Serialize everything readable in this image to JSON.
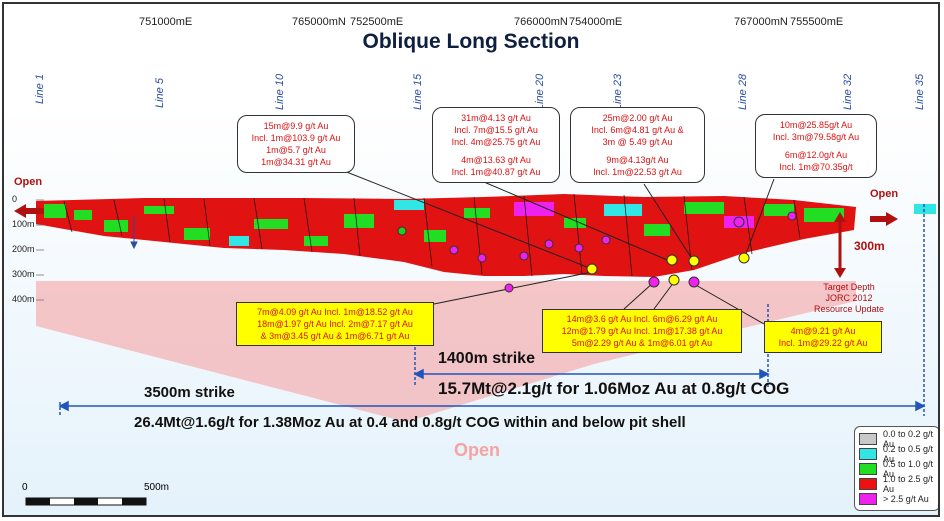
{
  "title": "Oblique Long Section",
  "coords": [
    "751000mE",
    "765000mN",
    "752500mE",
    "766000mN",
    "754000mE",
    "767000mN",
    "755500mE"
  ],
  "lines": [
    "Line 1",
    "Line 5",
    "Line 10",
    "Line 15",
    "Line 20",
    "Line 23",
    "Line 28",
    "Line 32",
    "Line 35"
  ],
  "depths": [
    "0",
    "100m",
    "200m",
    "300m",
    "400m"
  ],
  "open_left": "Open",
  "open_right": "Open",
  "open_bottom": "Open",
  "depth_extent": "300m",
  "target_depth": [
    "Target Depth",
    "JORC 2012",
    "Resource Update"
  ],
  "callouts": [
    [
      "15m@9.9 g/t Au",
      "Incl. 1m@103.9 g/t Au",
      "1m@5.7 g/t Au",
      "1m@34.31 g/t Au"
    ],
    [
      "31m@4.13 g/t Au",
      "Incl. 7m@15.5 g/t Au",
      "Incl. 4m@25.75 g/t Au",
      "",
      "4m@13.63 g/t Au",
      "Incl. 1m@40.87 g/t Au"
    ],
    [
      "25m@2.00 g/t Au",
      "Incl. 6m@4.81 g/t Au &",
      "3m @ 5.49 g/t Au",
      "",
      "9m@4.13g/t Au",
      "Incl. 1m@22.53 g/t Au"
    ],
    [
      "10m@25.85g/t Au",
      "Incl. 3m@79.58g/t Au",
      "",
      "6m@12.0g/t Au",
      "Incl. 1m@70.35g/t"
    ]
  ],
  "yellow_callouts": [
    [
      "7m@4.09 g/t Au Incl. 1m@18.52 g/t Au",
      "18m@1.97 g/t Au Incl. 2m@7.17 g/t Au",
      "& 3m@3.45 g/t Au & 1m@6.71 g/t Au"
    ],
    [
      "14m@3.6 g/t Au Incl. 6m@6.29 g/t Au",
      "12m@1.79 g/t Au Incl. 1m@17.38 g/t Au",
      "5m@2.29 g/t Au & 1m@6.01 g/t Au"
    ],
    [
      "4m@9.21 g/t Au",
      "Incl. 1m@29.22 g/t Au"
    ]
  ],
  "strike_1400": "1400m strike",
  "resource_1": "15.7Mt@2.1g/t for 1.06Moz Au at 0.8g/t COG",
  "strike_3500": "3500m strike",
  "resource_2": "26.4Mt@1.6g/t for 1.38Moz Au at 0.4 and 0.8g/t COG within and below pit shell",
  "scale_zero": "0",
  "scale_500": "500m",
  "legend": [
    {
      "label": "0.0 to  0.2 g/t Au",
      "color": "#c8c8c8"
    },
    {
      "label": "0.2 to  0.5 g/t Au",
      "color": "#33e6e6"
    },
    {
      "label": "0.5 to  1.0 g/t Au",
      "color": "#22dd22"
    },
    {
      "label": "1.0 to  2.5 g/t Au",
      "color": "#ee1111"
    },
    {
      "label": "> 2.5 g/t Au",
      "color": "#ee22ee"
    }
  ]
}
